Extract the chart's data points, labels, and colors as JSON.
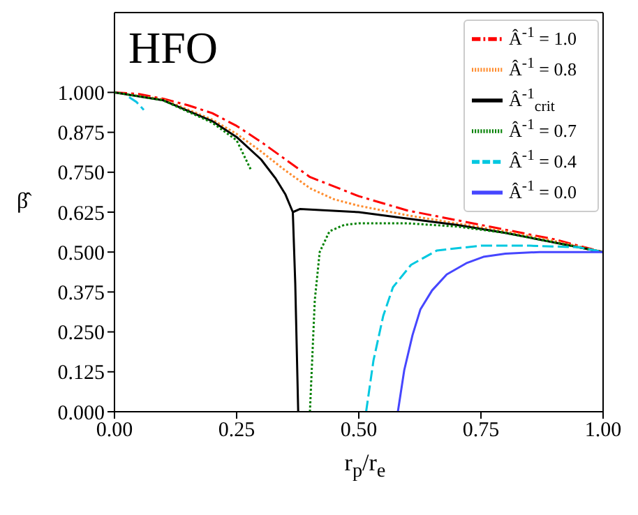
{
  "chart_data": {
    "type": "line",
    "annotations": [
      "HFO"
    ],
    "xlabel": "r$_{p}$/r$_{e}$",
    "ylabel": "β̂",
    "xlim": [
      0,
      1
    ],
    "ylim": [
      0,
      1.25
    ],
    "xticks": [
      {
        "value": 0,
        "label": "0.00"
      },
      {
        "value": 0.25,
        "label": "0.25"
      },
      {
        "value": 0.5,
        "label": "0.50"
      },
      {
        "value": 0.75,
        "label": "0.75"
      },
      {
        "value": 1,
        "label": "1.00"
      }
    ],
    "yticks": [
      {
        "value": 0,
        "label": "0.000"
      },
      {
        "value": 0.125,
        "label": "0.125"
      },
      {
        "value": 0.25,
        "label": "0.250"
      },
      {
        "value": 0.375,
        "label": "0.375"
      },
      {
        "value": 0.5,
        "label": "0.500"
      },
      {
        "value": 0.625,
        "label": "0.625"
      },
      {
        "value": 0.75,
        "label": "0.750"
      },
      {
        "value": 0.875,
        "label": "0.875"
      },
      {
        "value": 1,
        "label": "1.000"
      }
    ],
    "grid": false,
    "legend": "top right",
    "marker": "none",
    "series": [
      {
        "name": "Â$^{-1}$ = 1.0",
        "color": "#ff0000",
        "line_style": "dashdot",
        "x": [
          0,
          0.05,
          0.1,
          0.15,
          0.2,
          0.25,
          0.3,
          0.35,
          0.4,
          0.5,
          0.6,
          0.7,
          0.8,
          0.9,
          1.0
        ],
        "values": [
          1.0,
          0.995,
          0.98,
          0.96,
          0.935,
          0.895,
          0.845,
          0.79,
          0.735,
          0.675,
          0.63,
          0.6,
          0.57,
          0.54,
          0.5
        ]
      },
      {
        "name": "Â$^{-1}$ = 0.8",
        "color": "#ff8c2e",
        "line_style": "dotted",
        "x": [
          0,
          0.1,
          0.2,
          0.25,
          0.3,
          0.35,
          0.4,
          0.45,
          0.5,
          0.6,
          0.7,
          0.8,
          0.9,
          1.0
        ],
        "values": [
          1.0,
          0.978,
          0.915,
          0.87,
          0.815,
          0.755,
          0.7,
          0.665,
          0.645,
          0.615,
          0.59,
          0.565,
          0.535,
          0.5
        ]
      },
      {
        "name": "Â$^{-1}$$_{crit}$",
        "color": "#000000",
        "line_style": "solid",
        "x": [
          0,
          0.1,
          0.2,
          0.25,
          0.3,
          0.33,
          0.35,
          0.365,
          0.38,
          0.5,
          0.6,
          0.7,
          0.8,
          0.9,
          1.0
        ],
        "values": [
          1.0,
          0.975,
          0.91,
          0.86,
          0.79,
          0.73,
          0.68,
          0.625,
          0.635,
          0.625,
          0.605,
          0.585,
          0.56,
          0.53,
          0.5
        ]
      },
      {
        "name": "Â$^{-1}$ = 0.7",
        "color": "#008000",
        "line_style": "dotted",
        "x": [
          0.4,
          0.41,
          0.42,
          0.44,
          0.47,
          0.5,
          0.6,
          0.7,
          0.8,
          0.9,
          1.0
        ],
        "values": [
          0.0,
          0.35,
          0.5,
          0.565,
          0.585,
          0.59,
          0.59,
          0.58,
          0.56,
          0.53,
          0.5
        ]
      },
      {
        "name": "Â$^{-1}$ = 0.4",
        "color": "#00c8e0",
        "line_style": "dashed",
        "x": [
          0.515,
          0.53,
          0.55,
          0.57,
          0.607,
          0.66,
          0.75,
          0.85,
          0.95,
          1.0
        ],
        "values": [
          0.0,
          0.16,
          0.3,
          0.39,
          0.46,
          0.505,
          0.52,
          0.52,
          0.515,
          0.5
        ]
      },
      {
        "name": "Â$^{-1}$ = 0.0",
        "color": "#4646ff",
        "line_style": "solid",
        "x": [
          0.58,
          0.593,
          0.61,
          0.626,
          0.65,
          0.68,
          0.72,
          0.755,
          0.8,
          0.87,
          1.0
        ],
        "values": [
          0.0,
          0.13,
          0.24,
          0.32,
          0.38,
          0.43,
          0.465,
          0.485,
          0.495,
          0.5,
          0.5
        ]
      },
      {
        "color": "#000000",
        "line_style": "solid",
        "x": [
          0.365,
          0.37,
          0.373,
          0.376
        ],
        "values": [
          0.625,
          0.4,
          0.2,
          0.0
        ]
      },
      {
        "color": "#008000",
        "line_style": "dotted",
        "x": [
          0,
          0.1,
          0.2,
          0.25,
          0.28
        ],
        "values": [
          1.0,
          0.975,
          0.905,
          0.85,
          0.755
        ]
      },
      {
        "color": "#10c4e4",
        "line_style": "dashed",
        "x": [
          0.03,
          0.045,
          0.06
        ],
        "values": [
          0.985,
          0.97,
          0.945
        ]
      }
    ]
  }
}
